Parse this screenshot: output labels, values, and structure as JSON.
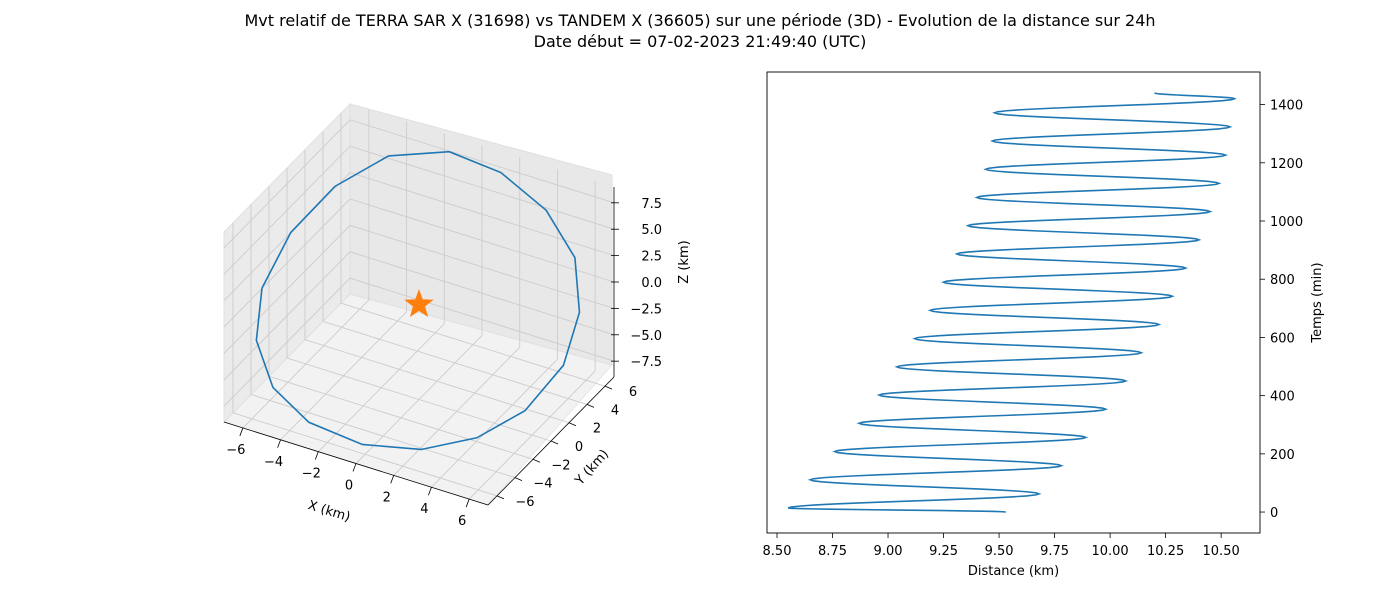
{
  "figure": {
    "title_line1": "Mvt relatif de TERRA SAR X (31698) vs TANDEM X (36605) sur une période (3D) - Evolution de la distance sur 24h",
    "title_line2": "Date début = 07-02-2023 21:49:40 (UTC)"
  },
  "colors": {
    "series": "#1f77b4",
    "marker": "#ff7f0e",
    "pane": "#f2f2f2",
    "grid": "#cccccc"
  },
  "chart_data": [
    {
      "type": "line3d",
      "xlabel": "X (km)",
      "ylabel": "Y (km)",
      "zlabel": "Z (km)",
      "xticks": [
        "−6",
        "−4",
        "−2",
        "0",
        "2",
        "4",
        "6"
      ],
      "yticks": [
        "−6",
        "−4",
        "−2",
        "0",
        "2",
        "4",
        "6"
      ],
      "zticks": [
        "−7.5",
        "−5.0",
        "−2.5",
        "0.0",
        "2.5",
        "5.0",
        "7.5"
      ],
      "xlim": [
        -7,
        7
      ],
      "ylim": [
        -7,
        7
      ],
      "zlim": [
        -9,
        9
      ],
      "grid": true,
      "marker": {
        "shape": "star",
        "x": 0,
        "y": 0,
        "z": 0
      },
      "series": [
        {
          "points": [
            [
              -6.8,
              -3.2,
              0.5
            ],
            [
              -6.0,
              -5.5,
              -2.0
            ],
            [
              -4.5,
              -6.8,
              -4.5
            ],
            [
              -2.5,
              -7.0,
              -6.5
            ],
            [
              0.0,
              -6.3,
              -7.8
            ],
            [
              2.5,
              -5.0,
              -8.0
            ],
            [
              4.5,
              -3.0,
              -7.5
            ],
            [
              6.0,
              -0.8,
              -6.0
            ],
            [
              6.8,
              1.8,
              -3.5
            ],
            [
              6.6,
              4.0,
              -0.5
            ],
            [
              5.5,
              5.8,
              2.5
            ],
            [
              3.5,
              6.8,
              5.0
            ],
            [
              1.0,
              7.0,
              7.0
            ],
            [
              -1.5,
              6.5,
              8.0
            ],
            [
              -4.0,
              5.0,
              7.5
            ],
            [
              -5.8,
              2.8,
              5.5
            ],
            [
              -6.8,
              0.0,
              3.0
            ],
            [
              -6.8,
              -3.2,
              0.5
            ]
          ]
        }
      ]
    },
    {
      "type": "line",
      "xlabel": "Distance (km)",
      "ylabel": "Temps (min)",
      "xticks": [
        "8.50",
        "8.75",
        "9.00",
        "9.25",
        "9.50",
        "9.75",
        "10.00",
        "10.25",
        "10.50"
      ],
      "yticks": [
        "0",
        "200",
        "400",
        "600",
        "800",
        "1000",
        "1200",
        "1400"
      ],
      "xlim": [
        8.455,
        10.675
      ],
      "ylim": [
        -72,
        1512
      ],
      "yaxis_position": "right",
      "grid": false,
      "series": [
        {
          "start": [
            9.53,
            0
          ],
          "end": [
            10.2,
            1440
          ],
          "period_min": 97,
          "min_distance": [
            8.55,
            8.65,
            8.76,
            8.87,
            8.96,
            9.04,
            9.12,
            9.19,
            9.25,
            9.31,
            9.36,
            9.4,
            9.44,
            9.47,
            9.48
          ],
          "max_distance": [
            9.68,
            9.78,
            9.89,
            9.98,
            10.07,
            10.14,
            10.22,
            10.28,
            10.34,
            10.4,
            10.45,
            10.49,
            10.52,
            10.54,
            10.56
          ]
        }
      ]
    }
  ]
}
